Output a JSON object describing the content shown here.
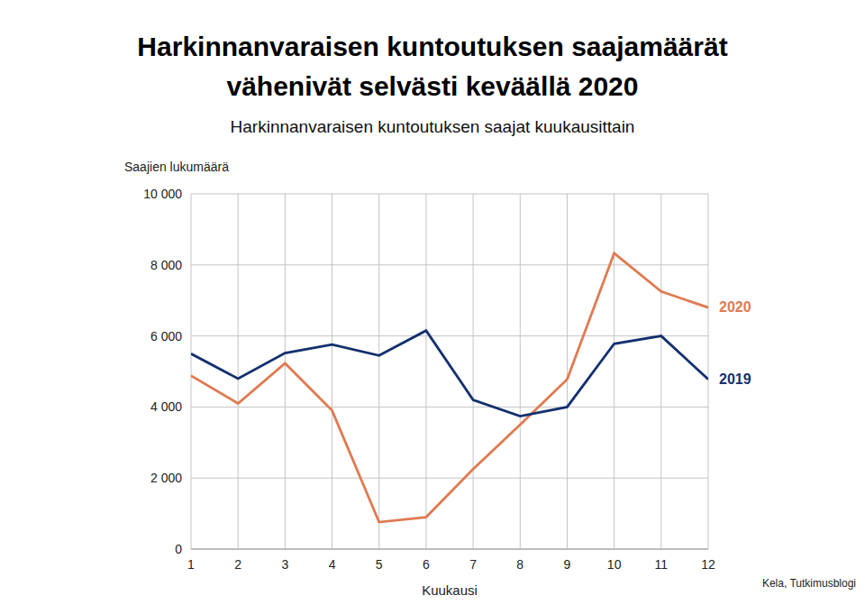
{
  "chart_data": {
    "type": "line",
    "title": "Harkinnanvaraisen kuntoutuksen saajamäärät vähenivät selvästi keväällä 2020",
    "subtitle": "Harkinnanvaraisen kuntoutuksen saajat kuukausittain",
    "x_label": "Kuukausi",
    "y_label": "Saajien lukumäärä",
    "source": "Kela, Tutkimusblogi",
    "x": [
      1,
      2,
      3,
      4,
      5,
      6,
      7,
      8,
      9,
      10,
      11,
      12
    ],
    "xlim": [
      1,
      12
    ],
    "xticks": [
      1,
      2,
      3,
      4,
      5,
      6,
      7,
      8,
      9,
      10,
      11,
      12
    ],
    "ylim": [
      0,
      10000
    ],
    "yticks": [
      0,
      {
        "value": 2000,
        "label": "2 000"
      },
      {
        "value": 4000,
        "label": "4 000"
      },
      {
        "value": 6000,
        "label": "6 000"
      },
      {
        "value": 8000,
        "label": "8 000"
      },
      {
        "value": 10000,
        "label": "10 000"
      }
    ],
    "grid": true,
    "series": [
      {
        "name": "2020",
        "color": "#e07a50",
        "values": [
          4880,
          4100,
          5230,
          3900,
          760,
          900,
          2250,
          3500,
          4780,
          8330,
          7250,
          6800
        ]
      },
      {
        "name": "2019",
        "color": "#13306e",
        "values": [
          5500,
          4800,
          5520,
          5760,
          5450,
          6150,
          4200,
          3740,
          4000,
          5780,
          6000,
          4780
        ]
      }
    ]
  }
}
